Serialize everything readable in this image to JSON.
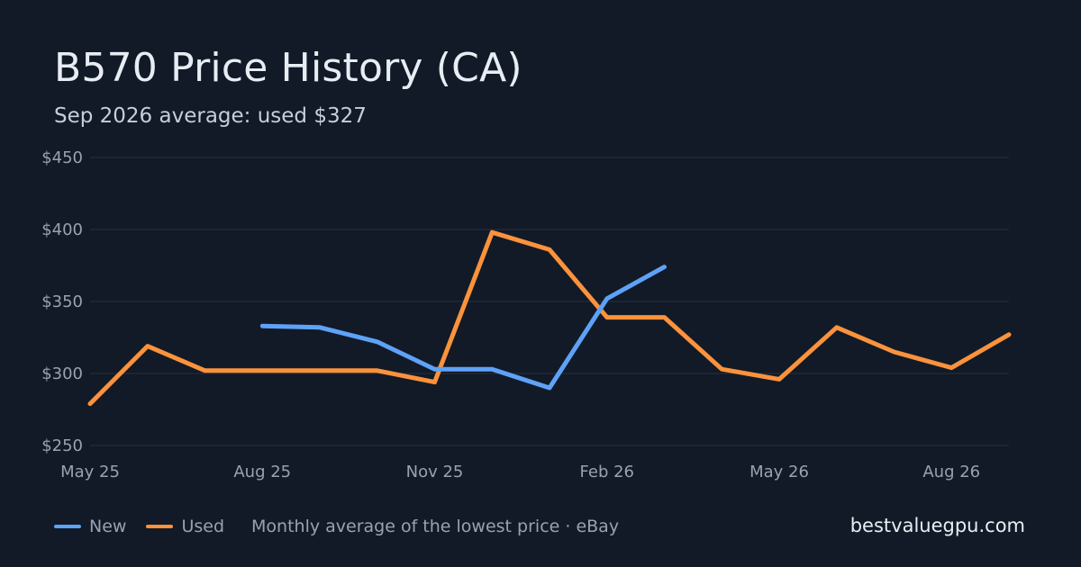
{
  "chart_data": {
    "type": "line",
    "title": "B570 Price History (CA)",
    "subtitle": "Sep 2026 average: used $327",
    "x": [
      "2025-05",
      "2025-06",
      "2025-07",
      "2025-08",
      "2025-09",
      "2025-10",
      "2025-11",
      "2025-12",
      "2026-01",
      "2026-02",
      "2026-03",
      "2026-04",
      "2026-05",
      "2026-06",
      "2026-07",
      "2026-08",
      "2026-09"
    ],
    "x_tick_labels": [
      {
        "x": "2025-05",
        "label": "May 25"
      },
      {
        "x": "2025-08",
        "label": "Aug 25"
      },
      {
        "x": "2025-11",
        "label": "Nov 25"
      },
      {
        "x": "2026-02",
        "label": "Feb 26"
      },
      {
        "x": "2026-05",
        "label": "May 26"
      },
      {
        "x": "2026-08",
        "label": "Aug 26"
      }
    ],
    "y_ticks": [
      {
        "value": 250,
        "label": "$250"
      },
      {
        "value": 300,
        "label": "$300"
      },
      {
        "value": 350,
        "label": "$350"
      },
      {
        "value": 400,
        "label": "$400"
      },
      {
        "value": 450,
        "label": "$450"
      }
    ],
    "ylim": [
      250,
      450
    ],
    "grid": true,
    "legend_position": "bottom-left",
    "series": [
      {
        "name": "New",
        "color": "#5ea2f7",
        "values": [
          null,
          null,
          null,
          333,
          332,
          322,
          303,
          303,
          290,
          352,
          374,
          null,
          null,
          null,
          null,
          null,
          null
        ]
      },
      {
        "name": "Used",
        "color": "#fb923c",
        "values": [
          279,
          319,
          302,
          302,
          302,
          302,
          294,
          398,
          386,
          339,
          339,
          303,
          296,
          332,
          315,
          304,
          327
        ]
      }
    ],
    "annotation": "Monthly average of the lowest price · eBay"
  },
  "footer": {
    "site": "bestvaluegpu.com"
  },
  "colors": {
    "background": "#121a27",
    "grid": "#253042",
    "axis_text": "#98a2b0"
  }
}
